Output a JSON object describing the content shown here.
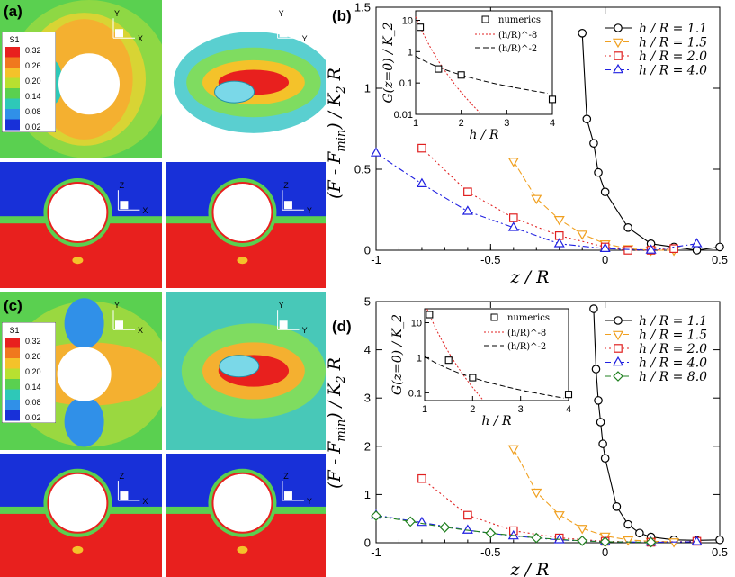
{
  "panels": {
    "a": "(a)",
    "b": "(b)",
    "c": "(c)",
    "d": "(d)"
  },
  "colorbar": {
    "title": "S1",
    "labels": [
      "0.32",
      "0.26",
      "0.20",
      "0.14",
      "0.08",
      "0.02"
    ],
    "colors": [
      "#e8201e",
      "#f0781e",
      "#f4c22a",
      "#b8e030",
      "#5ad050",
      "#2ec8b8",
      "#3090e8",
      "#1830d8"
    ]
  },
  "axis_glyphs": {
    "x": "X",
    "y": "Y",
    "z": "Z"
  },
  "chart_data": [
    {
      "id": "b",
      "type": "line",
      "xlabel": "z / R",
      "ylabel": "(F - F_min) / K_2 R",
      "xlim": [
        -1,
        0.5
      ],
      "ylim": [
        0,
        1.5
      ],
      "xticks": [
        "-1",
        "-0.5",
        "0",
        "0.5"
      ],
      "yticks": [
        "0",
        "0.5",
        "1",
        "1.5"
      ],
      "series": [
        {
          "name": "h / R = 1.1",
          "marker": "circle",
          "color": "#000000",
          "dash": "",
          "x": [
            -0.1,
            -0.08,
            -0.05,
            -0.03,
            0,
            0.1,
            0.2,
            0.3,
            0.4,
            0.5
          ],
          "y": [
            1.34,
            0.81,
            0.66,
            0.48,
            0.36,
            0.14,
            0.04,
            0.02,
            0.0,
            0.02
          ]
        },
        {
          "name": "h / R = 1.5",
          "marker": "tri-down",
          "color": "#f0a020",
          "dash": "7,3",
          "x": [
            -0.4,
            -0.3,
            -0.2,
            -0.1,
            0,
            0.1,
            0.2,
            0.3
          ],
          "y": [
            0.55,
            0.32,
            0.19,
            0.1,
            0.04,
            0.01,
            0.0,
            0.0
          ]
        },
        {
          "name": "h / R = 2.0",
          "marker": "square",
          "color": "#e02020",
          "dash": "2,3",
          "x": [
            -0.8,
            -0.6,
            -0.4,
            -0.2,
            0,
            0.1,
            0.2,
            0.3
          ],
          "y": [
            0.63,
            0.36,
            0.2,
            0.09,
            0.02,
            0.0,
            0.0,
            0.01
          ]
        },
        {
          "name": "h / R = 4.0",
          "marker": "tri-up",
          "color": "#2020e0",
          "dash": "7,3,2,3",
          "x": [
            -1,
            -0.8,
            -0.6,
            -0.4,
            -0.2,
            0,
            0.2,
            0.4
          ],
          "y": [
            0.6,
            0.41,
            0.24,
            0.14,
            0.04,
            0.01,
            0.0,
            0.04
          ]
        }
      ],
      "inset": {
        "xlabel": "h / R",
        "ylabel": "G(z=0) / K_2",
        "xlim": [
          1,
          4
        ],
        "ylim_log": [
          0.01,
          20
        ],
        "xticks": [
          "1",
          "2",
          "3",
          "4"
        ],
        "yticks": [
          "0.01",
          "0.1",
          "1",
          "10"
        ],
        "numerics": {
          "x": [
            1.1,
            1.5,
            2.0,
            4.0
          ],
          "y": [
            6.0,
            0.28,
            0.18,
            0.03
          ]
        },
        "legend": [
          "numerics",
          "(h/R)^-8",
          "(h/R)^-2"
        ]
      }
    },
    {
      "id": "d",
      "type": "line",
      "xlabel": "z / R",
      "ylabel": "(F - F_min) / K_2 R",
      "xlim": [
        -1,
        0.5
      ],
      "ylim": [
        0,
        5
      ],
      "xticks": [
        "-1",
        "-0.5",
        "0",
        "0.5"
      ],
      "yticks": [
        "0",
        "1",
        "2",
        "3",
        "4",
        "5"
      ],
      "series": [
        {
          "name": "h / R = 1.1",
          "marker": "circle",
          "color": "#000000",
          "dash": "",
          "x": [
            -0.05,
            -0.04,
            -0.03,
            -0.02,
            -0.01,
            0,
            0.05,
            0.1,
            0.15,
            0.2,
            0.3,
            0.4,
            0.5
          ],
          "y": [
            4.85,
            3.6,
            2.95,
            2.5,
            2.05,
            1.75,
            0.75,
            0.38,
            0.2,
            0.12,
            0.06,
            0.05,
            0.06
          ]
        },
        {
          "name": "h / R = 1.5",
          "marker": "tri-down",
          "color": "#f0a020",
          "dash": "7,3",
          "x": [
            -0.4,
            -0.3,
            -0.2,
            -0.1,
            0,
            0.1,
            0.2,
            0.3
          ],
          "y": [
            1.95,
            1.05,
            0.58,
            0.3,
            0.14,
            0.06,
            0.03,
            0.02
          ]
        },
        {
          "name": "h / R = 2.0",
          "marker": "square",
          "color": "#e02020",
          "dash": "2,3",
          "x": [
            -0.8,
            -0.6,
            -0.4,
            -0.2,
            0,
            0.2,
            0.4
          ],
          "y": [
            1.33,
            0.57,
            0.25,
            0.1,
            0.03,
            0.01,
            0.03
          ]
        },
        {
          "name": "h / R = 4.0",
          "marker": "tri-up",
          "color": "#2020e0",
          "dash": "7,3,2,3",
          "x": [
            -1,
            -0.8,
            -0.6,
            -0.4,
            -0.2,
            0,
            0.2,
            0.4
          ],
          "y": [
            0.57,
            0.42,
            0.26,
            0.14,
            0.06,
            0.02,
            0.01,
            0.02
          ]
        },
        {
          "name": "h / R = 8.0",
          "marker": "diamond",
          "color": "#208020",
          "dash": "7,3",
          "x": [
            -1,
            -0.85,
            -0.7,
            -0.5,
            -0.3,
            -0.1,
            0,
            0.2
          ],
          "y": [
            0.56,
            0.44,
            0.32,
            0.2,
            0.1,
            0.04,
            0.02,
            0.01
          ]
        }
      ],
      "inset": {
        "xlabel": "h / R",
        "ylabel": "G(z=0) / K_2",
        "xlim": [
          1,
          4
        ],
        "ylim_log": [
          0.06,
          25
        ],
        "xticks": [
          "1",
          "2",
          "3",
          "4"
        ],
        "yticks": [
          "0.1",
          "1",
          "10"
        ],
        "numerics": {
          "x": [
            1.1,
            1.5,
            2.0,
            4.0
          ],
          "y": [
            17.0,
            0.85,
            0.27,
            0.09
          ]
        },
        "legend": [
          "numerics",
          "(h/R)^-8",
          "(h/R)^-2"
        ]
      }
    }
  ]
}
